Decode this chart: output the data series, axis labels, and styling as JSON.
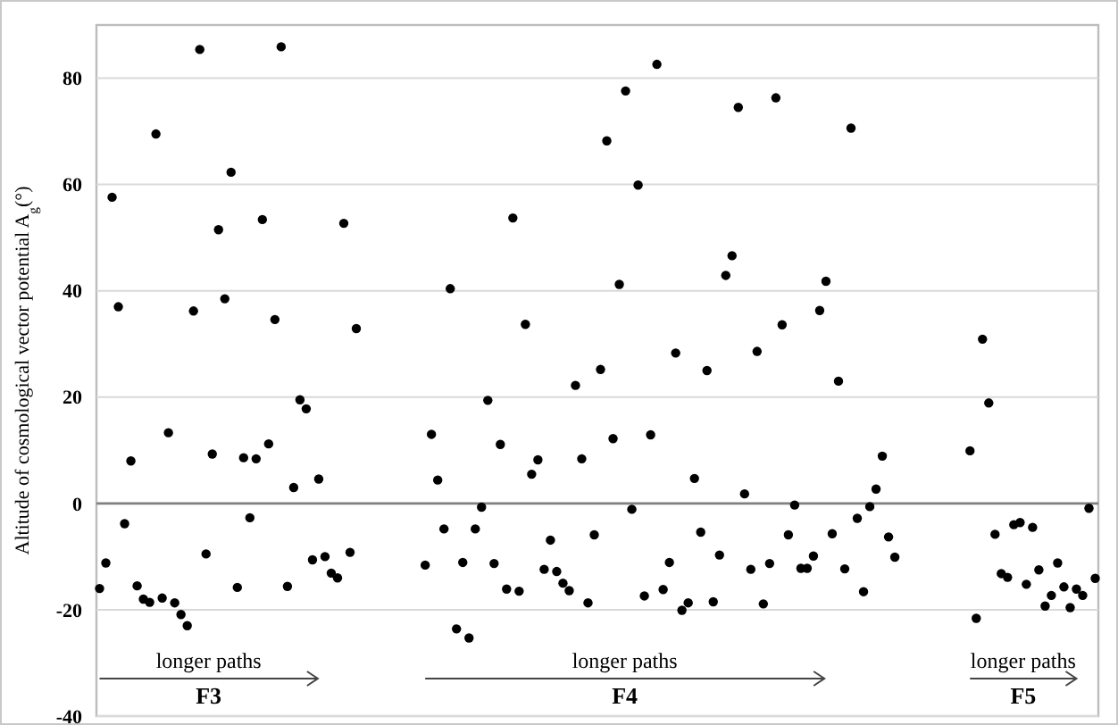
{
  "chart_data": {
    "type": "scatter",
    "ylabel": "Altitude of cosmological vector potential A$_{g}$(°)",
    "categories": [
      null,
      null,
      null,
      null,
      null,
      null,
      null,
      null,
      null,
      null,
      null,
      null,
      null,
      null,
      null,
      null,
      null,
      null,
      null,
      null,
      null,
      null,
      null,
      null,
      null,
      null,
      null,
      null,
      null,
      null,
      null,
      null,
      null,
      null,
      null,
      null,
      null,
      null,
      null,
      null,
      null,
      null,
      null,
      null,
      null,
      null,
      null,
      null,
      null,
      null,
      null,
      null,
      null,
      null,
      null,
      null,
      null,
      null,
      null,
      null,
      null,
      null,
      null,
      null,
      null,
      null,
      null,
      null,
      null,
      null,
      null,
      null,
      null,
      null,
      null,
      null,
      null,
      null,
      null,
      null,
      null,
      null,
      null,
      null,
      null,
      null,
      null,
      null,
      null,
      null,
      null,
      null,
      null,
      null,
      null,
      null,
      null,
      null,
      null,
      null,
      null,
      null,
      null,
      null,
      null,
      null,
      null,
      null,
      null,
      null,
      null,
      null,
      null,
      null,
      null,
      null,
      null,
      null,
      null,
      null,
      null,
      null,
      null,
      null,
      null,
      null,
      null,
      null,
      null,
      null,
      null,
      null,
      null,
      null,
      null,
      null,
      null,
      null,
      null,
      null,
      null,
      null,
      null,
      null,
      null,
      null,
      null,
      null,
      null,
      null,
      null,
      null,
      null,
      null,
      null,
      null,
      null,
      null,
      null,
      null
    ],
    "series": [
      {
        "color": "#000000",
        "values": [
          -16.0,
          -11.2,
          57.6,
          37.0,
          -3.8,
          8.0,
          -15.5,
          -18,
          -18.6,
          69.5,
          -17.8,
          13.3,
          -18.7,
          -20.9,
          -23.0,
          36.2,
          85.4,
          -9.5,
          9.3,
          51.5,
          38.5,
          62.3,
          -15.8,
          8.6,
          -2.7,
          8.4,
          53.4,
          11.2,
          34.6,
          85.9,
          -15.6,
          3.0,
          19.5,
          17.8,
          -10.6,
          4.6,
          -10.0,
          -13.1,
          -14.0,
          52.7,
          -9.2,
          32.9,
          null,
          null,
          null,
          null,
          null,
          null,
          null,
          null,
          null,
          null,
          -11.6,
          13.0,
          4.4,
          -4.8,
          40.4,
          -23.6,
          -11.1,
          -25.3,
          -4.8,
          -0.7,
          19.4,
          -11.3,
          11.1,
          -16.1,
          53.7,
          -16.5,
          33.7,
          5.5,
          8.2,
          -12.4,
          -6.9,
          -12.8,
          -15.0,
          -16.4,
          22.2,
          8.4,
          -18.7,
          -5.9,
          25.2,
          68.2,
          12.2,
          41.2,
          77.6,
          -1.1,
          59.9,
          -17.4,
          12.9,
          82.6,
          -16.2,
          -11.1,
          28.3,
          -20.1,
          -18.7,
          4.7,
          -5.4,
          25.0,
          -18.5,
          -9.7,
          42.9,
          46.6,
          74.5,
          1.8,
          -12.4,
          28.6,
          -18.9,
          -11.3,
          76.3,
          33.6,
          -5.9,
          -0.3,
          -12.2,
          -12.2,
          -9.9,
          36.3,
          41.8,
          -5.7,
          23.0,
          -12.3,
          70.6,
          -2.8,
          -16.6,
          -0.6,
          2.7,
          8.9,
          -6.3,
          -10.1,
          null,
          null,
          null,
          null,
          null,
          null,
          null,
          null,
          null,
          null,
          null,
          9.9,
          -21.6,
          30.9,
          18.9,
          -5.8,
          -13.2,
          -13.9,
          -4.0,
          -3.6,
          -15.2,
          -4.5,
          -12.5,
          -19.3,
          -17.3,
          -11.2,
          -15.7,
          -19.6,
          -16.1,
          -17.3,
          -0.9,
          -14.1
        ]
      }
    ],
    "ylim": [
      -40,
      90
    ],
    "yticks": [
      -40,
      -20,
      0,
      20,
      40,
      60,
      80
    ],
    "grid": "y",
    "marker": "circle",
    "ref_lines": [
      {
        "axis": "y",
        "value": 0,
        "color": "#808080"
      }
    ],
    "annotations": [
      "longer paths",
      "F3",
      "longer paths",
      "F4",
      "longer paths",
      "F5"
    ]
  }
}
